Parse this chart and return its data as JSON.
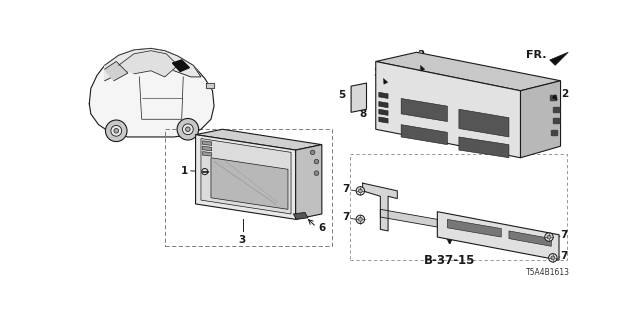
{
  "bg_color": "#ffffff",
  "diagram_id": "T5A4B1613",
  "fr_label": "FR.",
  "b_label": "B-37-15",
  "line_color": "#1a1a1a",
  "gray_light": "#d8d8d8",
  "gray_mid": "#aaaaaa",
  "gray_dark": "#555555",
  "black": "#111111"
}
